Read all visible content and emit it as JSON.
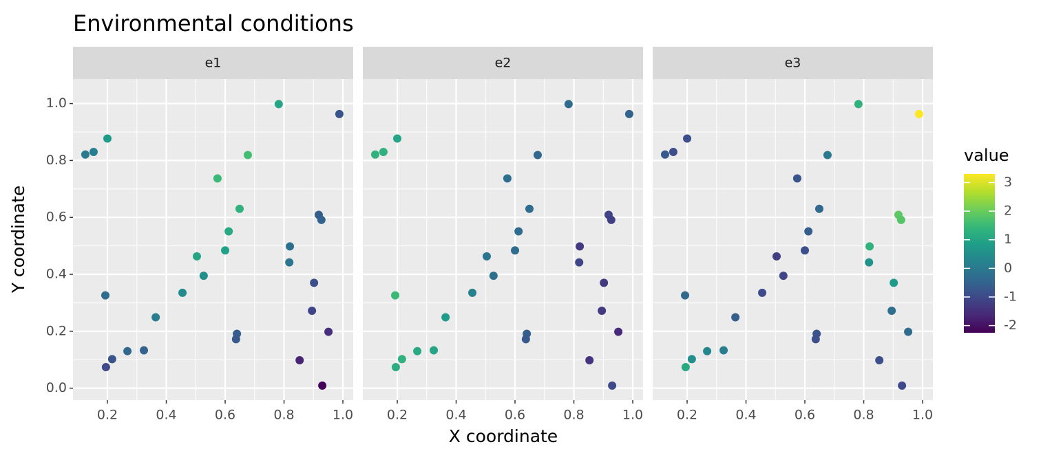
{
  "chart_data": {
    "type": "scatter",
    "title": "Environmental conditions",
    "x_label": "X coordinate",
    "y_label": "Y coordinate",
    "x": [
      0.782,
      0.988,
      0.125,
      0.153,
      0.2,
      0.677,
      0.574,
      0.649,
      0.918,
      0.927,
      0.612,
      0.504,
      0.6,
      0.82,
      0.818,
      0.527,
      0.455,
      0.193,
      0.902,
      0.364,
      0.895,
      0.951,
      0.64,
      0.637,
      0.216,
      0.268,
      0.324,
      0.195,
      0.853,
      0.93
    ],
    "y": [
      0.998,
      0.963,
      0.821,
      0.83,
      0.877,
      0.819,
      0.737,
      0.63,
      0.609,
      0.591,
      0.551,
      0.463,
      0.484,
      0.498,
      0.442,
      0.395,
      0.335,
      0.326,
      0.37,
      0.249,
      0.272,
      0.198,
      0.191,
      0.172,
      0.102,
      0.13,
      0.133,
      0.074,
      0.098,
      0.009
    ],
    "facets": [
      {
        "name": "e1",
        "values": [
          1.0,
          -0.8,
          0.0,
          0.1,
          0.8,
          1.6,
          1.5,
          1.3,
          -0.6,
          -0.5,
          1.1,
          1.0,
          0.9,
          -0.2,
          -0.1,
          0.5,
          0.4,
          -0.3,
          -0.9,
          0.1,
          -1.1,
          -1.5,
          -0.6,
          -0.7,
          -0.8,
          -0.4,
          -0.5,
          -1.0,
          -1.7,
          -2.2
        ]
      },
      {
        "name": "e2",
        "values": [
          -0.3,
          -0.5,
          1.3,
          1.3,
          1.0,
          -0.4,
          -0.2,
          -0.3,
          -1.1,
          -1.2,
          -0.3,
          -0.1,
          -0.3,
          -1.3,
          -1.1,
          -0.2,
          0.2,
          1.5,
          -1.3,
          0.8,
          -1.3,
          -1.6,
          -0.6,
          -0.7,
          1.3,
          1.1,
          1.0,
          1.2,
          -1.4,
          -1.0
        ]
      },
      {
        "name": "e3",
        "values": [
          1.3,
          3.3,
          -0.7,
          -0.9,
          -0.9,
          0.0,
          -0.8,
          -0.4,
          1.9,
          1.8,
          -0.6,
          -1.2,
          -0.9,
          1.3,
          0.6,
          -1.1,
          -1.0,
          -0.4,
          0.8,
          -0.6,
          -0.2,
          -0.3,
          -0.8,
          -0.9,
          0.5,
          0.3,
          0.1,
          1.1,
          -0.9,
          -1.0
        ]
      }
    ],
    "xlim": [
      0.083,
      1.035
    ],
    "xticks": [
      0.2,
      0.4,
      0.6,
      0.8,
      {
        "value": 1,
        "label": "1.0"
      }
    ],
    "ylim": [
      -0.042,
      1.086
    ],
    "yticks": [
      {
        "value": 0,
        "label": "0.0"
      },
      0.2,
      0.4,
      0.6,
      0.8,
      {
        "value": 1,
        "label": "1.0"
      }
    ],
    "grid": true,
    "colorbar": {
      "title": "value",
      "lim": [
        -2.25,
        3.3
      ],
      "ticks": [
        -2,
        -1,
        0,
        1,
        2,
        3
      ],
      "palette": [
        "#440154",
        "#482878",
        "#3e4989",
        "#31688e",
        "#26828e",
        "#1f9e89",
        "#35b779",
        "#6ece58",
        "#b5de2b",
        "#fde725"
      ]
    }
  }
}
